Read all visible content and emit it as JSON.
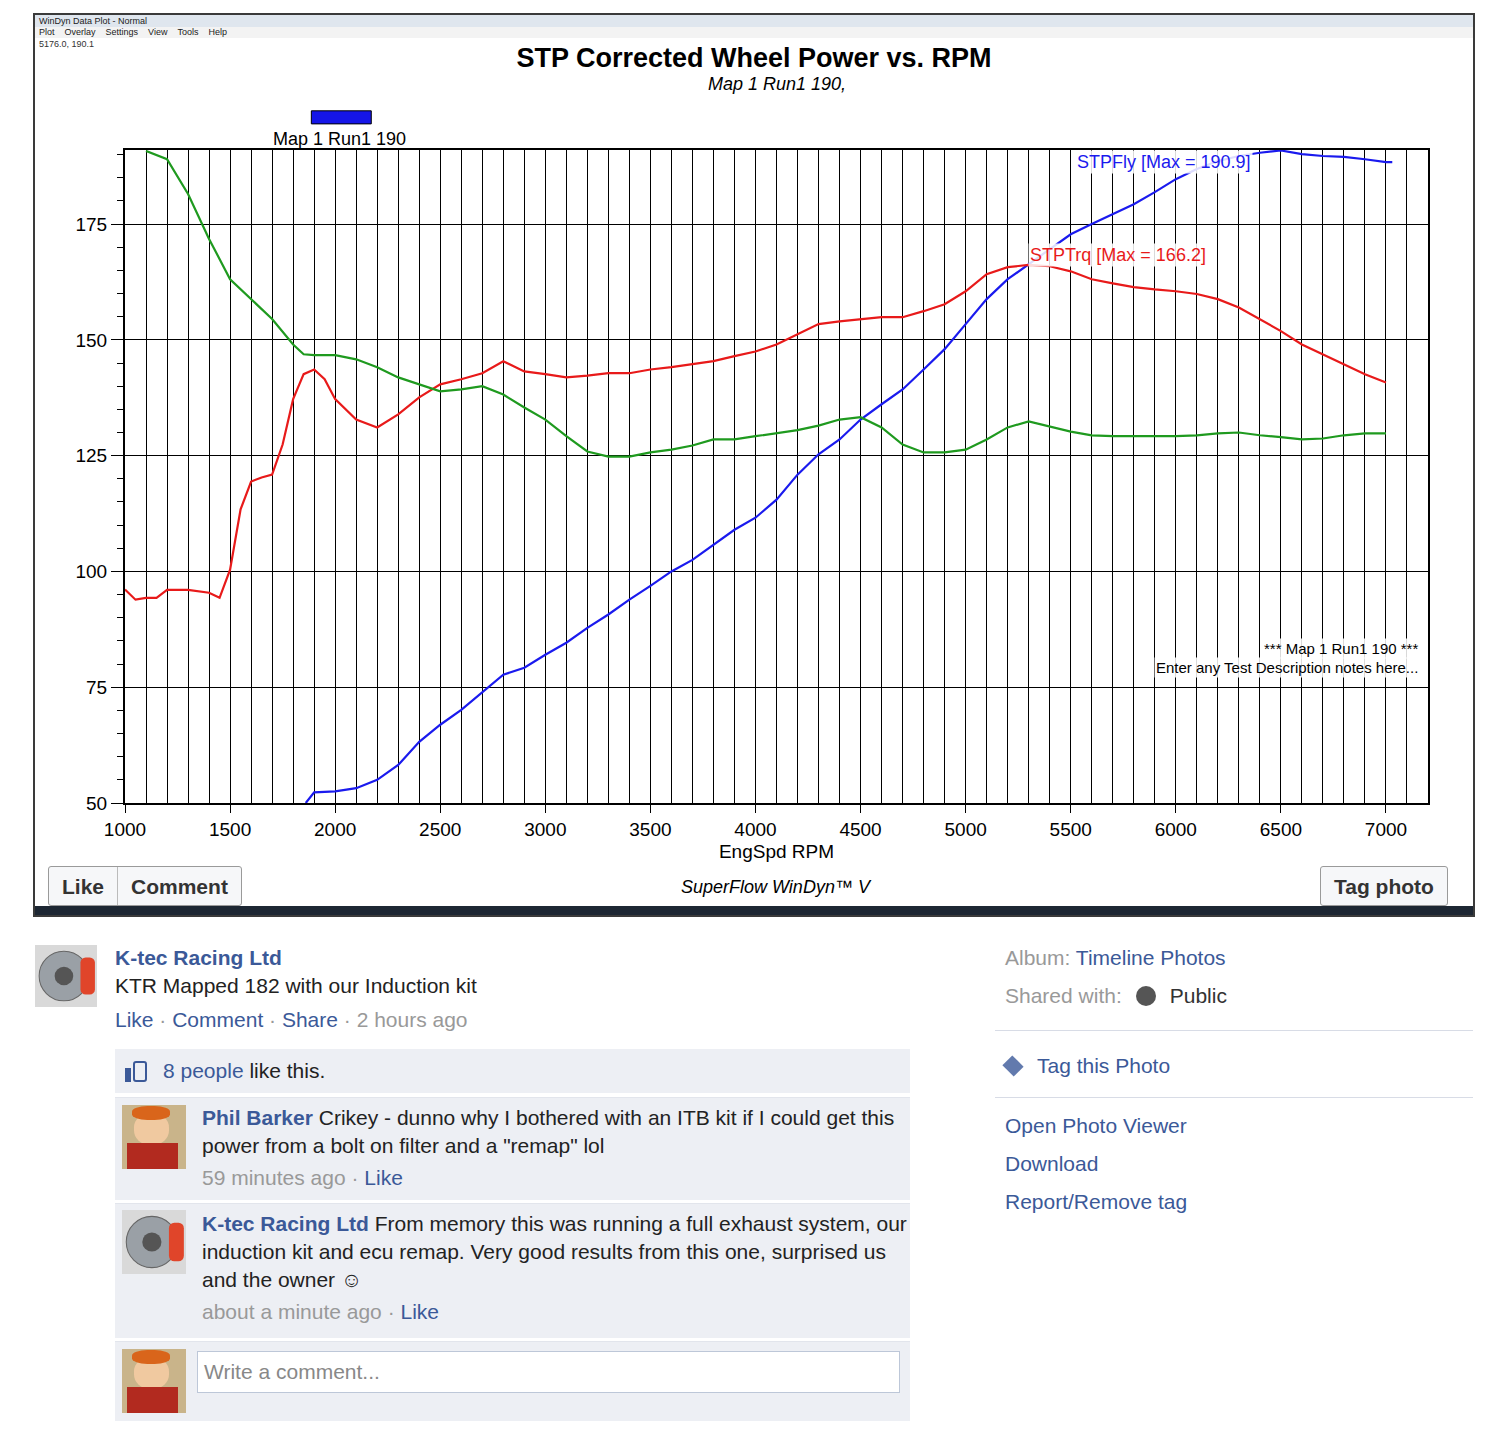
{
  "window": {
    "title": "WinDyn Data Plot - Normal",
    "menu": [
      "Plot",
      "Overlay",
      "Settings",
      "View",
      "Tools",
      "Help"
    ],
    "readout": "5176.0, 190.1"
  },
  "chart_data": {
    "type": "line",
    "title": "STP Corrected Wheel Power vs. RPM",
    "subtitle": "Map 1 Run1 190,",
    "run_label": {
      "text": "Map 1 Run1 190",
      "color": "#1515e8"
    },
    "x_label": "EngSpd RPM",
    "footer": "SuperFlow WinDyn™ V",
    "xlim": [
      1000,
      7200
    ],
    "xticks": [
      1000,
      1500,
      2000,
      2500,
      3000,
      3500,
      4000,
      4500,
      5000,
      5500,
      6000,
      6500,
      7000
    ],
    "ylim": [
      50,
      191
    ],
    "yticks": [
      50,
      75,
      100,
      125,
      150,
      175
    ],
    "grid": true,
    "series": [
      {
        "color": "#1a1aee",
        "x": [
          1860,
          1900,
          2000,
          2100,
          2200,
          2300,
          2400,
          2500,
          2600,
          2700,
          2800,
          2900,
          3000,
          3100,
          3200,
          3300,
          3400,
          3500,
          3600,
          3700,
          3800,
          3900,
          4000,
          4100,
          4200,
          4300,
          4400,
          4500,
          4600,
          4700,
          4800,
          4900,
          5000,
          5100,
          5200,
          5300,
          5400,
          5500,
          5600,
          5700,
          5800,
          5900,
          6000,
          6100,
          6200,
          6300,
          6400,
          6500,
          6600,
          6700,
          6800,
          6900,
          7000,
          7030
        ],
        "values": [
          50.0,
          52.3,
          52.5,
          53.2,
          55.0,
          58.2,
          63.2,
          66.9,
          70.1,
          74.0,
          77.7,
          79.2,
          82.0,
          84.6,
          87.8,
          90.7,
          93.9,
          96.9,
          100.0,
          102.5,
          105.8,
          109.0,
          111.6,
          115.5,
          120.9,
          125.3,
          128.5,
          132.8,
          136.1,
          139.3,
          143.6,
          148.0,
          153.4,
          158.8,
          163.1,
          166.3,
          169.6,
          172.8,
          175.0,
          177.2,
          179.3,
          181.9,
          184.7,
          186.9,
          188.6,
          189.7,
          190.4,
          190.9,
          190.1,
          189.7,
          189.5,
          189.0,
          188.4,
          188.4
        ]
      },
      {
        "color": "#e81a1a",
        "x": [
          1000,
          1050,
          1100,
          1150,
          1200,
          1300,
          1400,
          1450,
          1500,
          1550,
          1600,
          1650,
          1700,
          1750,
          1800,
          1850,
          1900,
          1950,
          2000,
          2100,
          2200,
          2300,
          2400,
          2500,
          2600,
          2700,
          2800,
          2900,
          3000,
          3100,
          3200,
          3300,
          3400,
          3500,
          3600,
          3700,
          3800,
          3900,
          4000,
          4100,
          4200,
          4300,
          4400,
          4500,
          4600,
          4700,
          4800,
          4900,
          5000,
          5100,
          5200,
          5300,
          5400,
          5500,
          5600,
          5700,
          5800,
          5900,
          6000,
          6100,
          6200,
          6300,
          6400,
          6500,
          6600,
          6700,
          6800,
          6900,
          7000
        ],
        "values": [
          96.1,
          93.9,
          94.3,
          94.3,
          96.0,
          96.0,
          95.4,
          94.3,
          100.4,
          113.4,
          119.4,
          120.3,
          120.9,
          127.4,
          137.2,
          142.6,
          143.6,
          141.5,
          137.2,
          132.8,
          131.1,
          133.9,
          137.6,
          140.4,
          141.5,
          142.8,
          145.4,
          143.2,
          142.6,
          141.9,
          142.3,
          142.8,
          142.8,
          143.6,
          144.1,
          144.7,
          145.4,
          146.5,
          147.5,
          149.0,
          151.2,
          153.4,
          154.0,
          154.5,
          154.9,
          154.9,
          156.2,
          157.7,
          160.5,
          164.2,
          165.7,
          166.2,
          165.9,
          164.8,
          163.1,
          162.2,
          161.4,
          160.9,
          160.5,
          159.9,
          158.8,
          157.0,
          154.5,
          151.9,
          149.0,
          146.9,
          144.7,
          142.6,
          140.8
        ]
      },
      {
        "color": "#1f9a1f",
        "x": [
          1100,
          1200,
          1300,
          1400,
          1500,
          1600,
          1700,
          1800,
          1850,
          1900,
          2000,
          2100,
          2200,
          2300,
          2400,
          2500,
          2600,
          2700,
          2800,
          2900,
          3000,
          3100,
          3200,
          3300,
          3400,
          3500,
          3600,
          3700,
          3800,
          3900,
          4000,
          4100,
          4200,
          4300,
          4400,
          4500,
          4600,
          4700,
          4800,
          4900,
          5000,
          5100,
          5200,
          5300,
          5400,
          5500,
          5600,
          5700,
          5800,
          5900,
          6000,
          6100,
          6200,
          6300,
          6400,
          6500,
          6600,
          6700,
          6800,
          6900,
          7000
        ],
        "values": [
          190.8,
          189.0,
          181.5,
          171.8,
          163.1,
          158.8,
          154.5,
          149.0,
          146.9,
          146.7,
          146.7,
          145.8,
          144.1,
          141.9,
          140.4,
          138.9,
          139.3,
          140.0,
          138.2,
          135.4,
          132.8,
          129.2,
          125.9,
          124.8,
          124.8,
          125.7,
          126.3,
          127.2,
          128.5,
          128.5,
          129.2,
          129.8,
          130.5,
          131.5,
          132.8,
          133.3,
          131.1,
          127.4,
          125.7,
          125.7,
          126.3,
          128.5,
          131.1,
          132.4,
          131.3,
          130.2,
          129.4,
          129.2,
          129.2,
          129.2,
          129.2,
          129.4,
          129.8,
          130.0,
          129.4,
          129.0,
          128.5,
          128.7,
          129.4,
          129.8,
          129.8
        ]
      }
    ],
    "annotations": [
      {
        "text": "STPFly [Max = 190.9]",
        "color": "#1a1aee"
      },
      {
        "text": "STPTrq [Max = 166.2]",
        "color": "#e81a1a"
      },
      {
        "text": "*** Map 1 Run1 190 ***",
        "color": "#000000"
      },
      {
        "text": "Enter any Test Description notes here...",
        "color": "#000000"
      }
    ]
  },
  "photo_buttons": {
    "left": [
      "Like",
      "Comment"
    ],
    "right": "Tag photo"
  },
  "post": {
    "author": "K-tec Racing Ltd",
    "caption": "KTR Mapped 182 with our Induction kit",
    "actions": [
      "Like",
      "Comment",
      "Share"
    ],
    "time": "2 hours ago",
    "separator": " · ",
    "likes": {
      "who": "8 people",
      "rest": " like this."
    },
    "comments": [
      {
        "author": "Phil Barker",
        "text": "Crikey - dunno why I bothered with an ITB kit if I could get this power from a bolt on filter and a \"remap\" lol",
        "time": "59 minutes ago",
        "action": "Like"
      },
      {
        "author": "K-tec Racing Ltd",
        "text": "From memory this was running a full exhaust system, our induction kit and ecu remap. Very good results from this one, surprised us and the owner ☺",
        "time": "about a minute ago",
        "action": "Like"
      }
    ],
    "reply_placeholder": "Write a comment..."
  },
  "sidebar": {
    "album_label": "Album:",
    "album": "Timeline Photos",
    "shared_label": "Shared with:",
    "shared": "Public",
    "tag_link": "Tag this Photo",
    "links": [
      "Open Photo Viewer",
      "Download",
      "Report/Remove tag"
    ]
  }
}
